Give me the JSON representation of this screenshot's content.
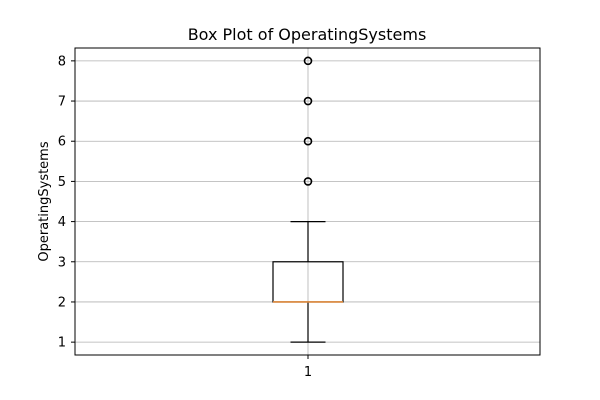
{
  "chart_data": {
    "type": "box",
    "title": "Box Plot of OperatingSystems",
    "xlabel": "",
    "ylabel": "OperatingSystems",
    "categories": [
      "1"
    ],
    "ylim": [
      0.68,
      8.32
    ],
    "yticks": [
      1,
      2,
      3,
      4,
      5,
      6,
      7,
      8
    ],
    "grid": true,
    "box": {
      "whisker_low": 1,
      "q1": 2,
      "median": 2,
      "q3": 3,
      "whisker_high": 4,
      "outliers": [
        5,
        6,
        7,
        8
      ]
    },
    "colors": {
      "median": "#e08a3c",
      "grid": "#b0b0b0",
      "box": "#000000"
    }
  }
}
